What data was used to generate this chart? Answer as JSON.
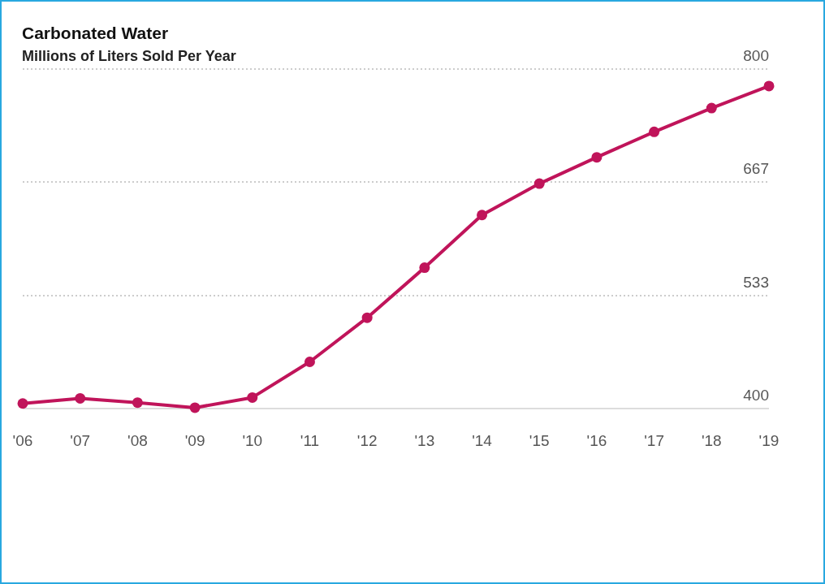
{
  "chart_data": {
    "type": "line",
    "title": "Carbonated Water",
    "subtitle": "Millions of Liters Sold Per Year",
    "categories": [
      "'06",
      "'07",
      "'08",
      "'09",
      "'10",
      "'11",
      "'12",
      "'13",
      "'14",
      "'15",
      "'16",
      "'17",
      "'18",
      "'19"
    ],
    "series": [
      {
        "color": "#c0145a",
        "values": [
          406,
          412,
          407,
          401,
          413,
          455,
          507,
          566,
          628,
          665,
          696,
          726,
          754,
          780
        ]
      }
    ],
    "ylim": [
      400,
      800
    ],
    "yticks": [
      400,
      533,
      667,
      800
    ],
    "grid": "y",
    "marker": "circle",
    "line_style": "solid"
  }
}
